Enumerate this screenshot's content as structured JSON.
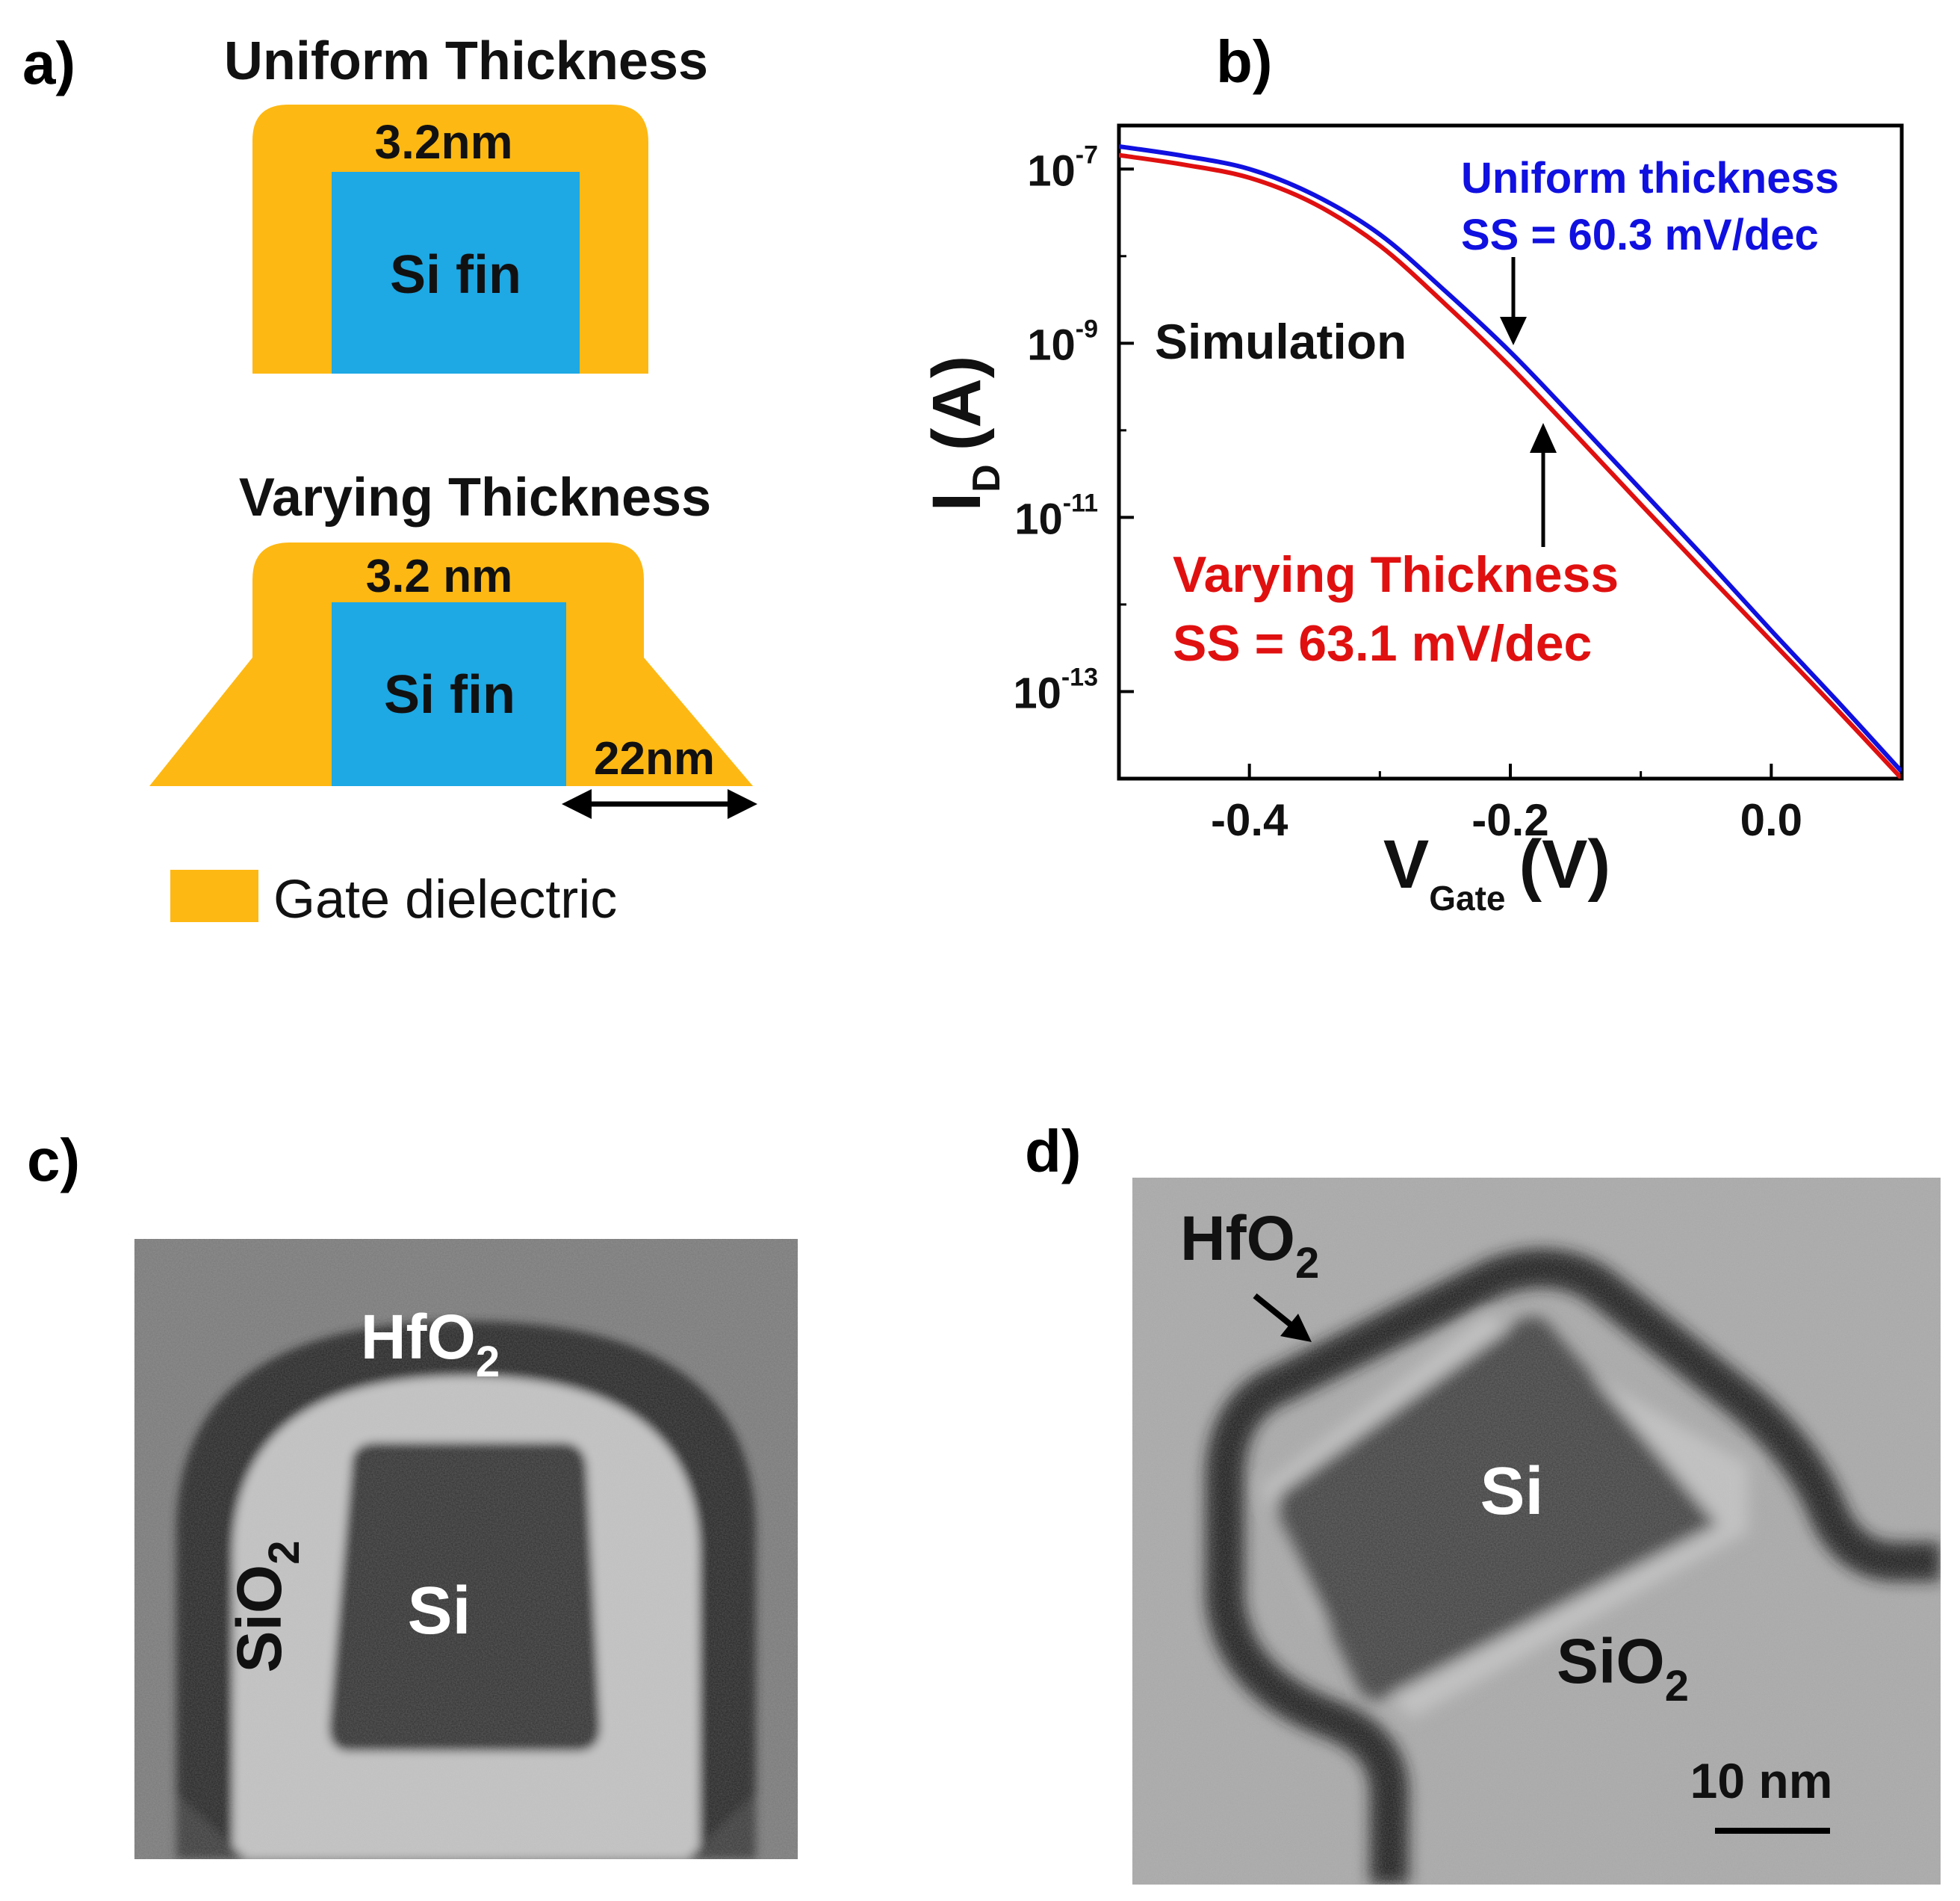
{
  "figure": {
    "panels": {
      "a": {
        "label": "a)",
        "uniform": {
          "title": "Uniform Thickness",
          "thickness": "3.2nm",
          "fin": "Si fin"
        },
        "varying": {
          "title": "Varying Thickness",
          "thickness": "3.2 nm",
          "fin": "Si fin",
          "base": "22nm"
        },
        "legend": {
          "text": "Gate dielectric",
          "color": "#FDB813"
        },
        "colors": {
          "dielectric": "#FDB813",
          "fin": "#1EA8E4"
        }
      },
      "b": {
        "label": "b)",
        "annotation_simulation": "Simulation",
        "uniform_label": "Uniform thickness",
        "uniform_ss": "SS = 60.3 mV/dec",
        "varying_label": "Varying Thickness",
        "varying_ss": "SS = 63.1 mV/dec",
        "ylabel_main": "I",
        "ylabel_sub": "D",
        "ylabel_unit": "(A)",
        "xlabel_main": "V",
        "xlabel_sub": "Gate",
        "xlabel_unit": "(V)"
      },
      "c": {
        "label": "c)",
        "hfo2": {
          "base": "HfO",
          "sub": "2"
        },
        "sio2": {
          "base": "SiO",
          "sub": "2"
        },
        "si": "Si"
      },
      "d": {
        "label": "d)",
        "hfo2": {
          "base": "HfO",
          "sub": "2"
        },
        "sio2": {
          "base": "SiO",
          "sub": "2"
        },
        "si": "Si",
        "scale": "10 nm"
      }
    }
  },
  "chart_data": {
    "type": "line",
    "title": "",
    "xlabel": "V_Gate (V)",
    "ylabel": "I_D (A)",
    "yscale": "log",
    "xlim": [
      -0.5,
      0.1
    ],
    "ylim_log10": [
      -14,
      -6.5
    ],
    "xticks": [
      {
        "value": -0.4,
        "label": "-0.4"
      },
      {
        "value": -0.2,
        "label": "-0.2"
      },
      {
        "value": 0.0,
        "label": "0.0"
      }
    ],
    "yticks": [
      {
        "exp": -7,
        "base": "10",
        "sup": "-7"
      },
      {
        "exp": -9,
        "base": "10",
        "sup": "-9"
      },
      {
        "exp": -11,
        "base": "10",
        "sup": "-11"
      },
      {
        "exp": -13,
        "base": "10",
        "sup": "-13"
      }
    ],
    "series": [
      {
        "name": "Uniform thickness",
        "color": "#1010E0",
        "x": [
          -0.5,
          -0.45,
          -0.4,
          -0.35,
          -0.3,
          -0.25,
          -0.2,
          -0.15,
          -0.1,
          -0.05,
          0.0,
          0.05,
          0.1
        ],
        "log10_y": [
          -6.74,
          -6.85,
          -7.0,
          -7.3,
          -7.75,
          -8.4,
          -9.1,
          -9.88,
          -10.68,
          -11.48,
          -12.3,
          -13.1,
          -13.92
        ]
      },
      {
        "name": "Varying Thickness",
        "color": "#E01010",
        "x": [
          -0.5,
          -0.45,
          -0.4,
          -0.35,
          -0.3,
          -0.25,
          -0.2,
          -0.15,
          -0.1,
          -0.05,
          0.0,
          0.05,
          0.1
        ],
        "log10_y": [
          -6.84,
          -6.95,
          -7.1,
          -7.4,
          -7.88,
          -8.55,
          -9.27,
          -10.05,
          -10.85,
          -11.64,
          -12.42,
          -13.2,
          -14.0
        ]
      }
    ],
    "annotations": [
      "Simulation",
      "Uniform thickness",
      "SS = 60.3 mV/dec",
      "Varying Thickness",
      "SS = 63.1 mV/dec"
    ]
  }
}
